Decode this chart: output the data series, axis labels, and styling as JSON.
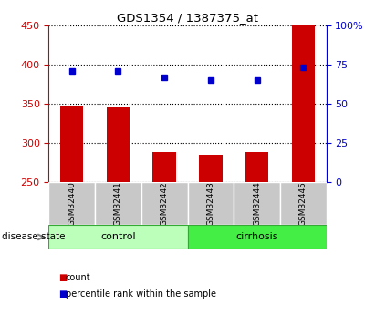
{
  "title": "GDS1354 / 1387375_at",
  "samples": [
    "GSM32440",
    "GSM32441",
    "GSM32442",
    "GSM32443",
    "GSM32444",
    "GSM32445"
  ],
  "counts": [
    348,
    345,
    288,
    285,
    288,
    450
  ],
  "percentiles": [
    71,
    71,
    67,
    65,
    65,
    73
  ],
  "ylim_left": [
    250,
    450
  ],
  "ylim_right": [
    0,
    100
  ],
  "yticks_left": [
    250,
    300,
    350,
    400,
    450
  ],
  "yticks_right": [
    0,
    25,
    50,
    75,
    100
  ],
  "ytick_labels_right": [
    "0",
    "25",
    "50",
    "75",
    "100%"
  ],
  "bar_color": "#cc0000",
  "dot_color": "#0000cc",
  "bar_width": 0.5,
  "groups": [
    {
      "label": "control",
      "indices": [
        0,
        1,
        2
      ],
      "color": "#bbffbb"
    },
    {
      "label": "cirrhosis",
      "indices": [
        3,
        4,
        5
      ],
      "color": "#44ee44"
    }
  ],
  "group_label_text": "disease state",
  "legend_items": [
    {
      "color": "#cc0000",
      "label": "count"
    },
    {
      "color": "#0000cc",
      "label": "percentile rank within the sample"
    }
  ],
  "background_color": "#ffffff",
  "sample_box_color": "#c8c8c8",
  "left_tick_color": "#cc0000",
  "right_tick_color": "#0000cc"
}
